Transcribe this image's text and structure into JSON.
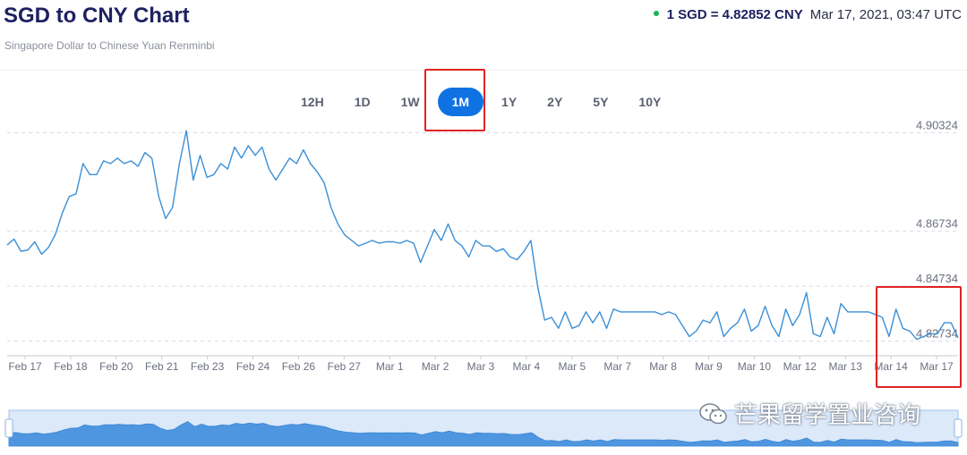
{
  "header": {
    "title": "SGD to CNY Chart",
    "subtitle": "Singapore Dollar to Chinese Yuan Renminbi",
    "rate": "1 SGD = 4.82852 CNY",
    "timestamp": "Mar 17, 2021, 03:47 UTC",
    "status_color": "#16b550"
  },
  "ranges": {
    "items": [
      "12H",
      "1D",
      "1W",
      "1M",
      "1Y",
      "2Y",
      "5Y",
      "10Y"
    ],
    "active": "1M",
    "active_color": "#0e72e3"
  },
  "watermark": "芒果留学置业咨询",
  "chart_data": {
    "type": "line",
    "x_tick_labels": [
      "Feb 17",
      "Feb 18",
      "Feb 20",
      "Feb 21",
      "Feb 23",
      "Feb 24",
      "Feb 26",
      "Feb 27",
      "Mar 1",
      "Mar 2",
      "Mar 3",
      "Mar 4",
      "Mar 5",
      "Mar 7",
      "Mar 8",
      "Mar 9",
      "Mar 10",
      "Mar 12",
      "Mar 13",
      "Mar 14",
      "Mar 17"
    ],
    "y_tick_labels": [
      "4.90324",
      "4.86734",
      "4.84734",
      "4.82734"
    ],
    "y_ticks": [
      4.90324,
      4.86734,
      4.84734,
      4.82734
    ],
    "ylim": [
      4.822,
      4.906
    ],
    "grid": true,
    "line_color": "#3a8fd6",
    "series": [
      {
        "values": [
          4.8624,
          4.8645,
          4.8601,
          4.8605,
          4.8635,
          4.859,
          4.8615,
          4.8662,
          4.874,
          4.88,
          4.881,
          4.892,
          4.888,
          4.888,
          4.893,
          4.892,
          4.894,
          4.892,
          4.893,
          4.891,
          4.896,
          4.894,
          4.88,
          4.872,
          4.876,
          4.892,
          4.904,
          4.886,
          4.895,
          4.887,
          4.888,
          4.892,
          4.89,
          4.898,
          4.894,
          4.8985,
          4.895,
          4.898,
          4.89,
          4.886,
          4.89,
          4.894,
          4.892,
          4.897,
          4.892,
          4.889,
          4.885,
          4.876,
          4.87,
          4.866,
          4.864,
          4.862,
          4.863,
          4.864,
          4.863,
          4.8635,
          4.8635,
          4.863,
          4.864,
          4.863,
          4.856,
          4.862,
          4.868,
          4.864,
          4.87,
          4.864,
          4.862,
          4.858,
          4.864,
          4.862,
          4.862,
          4.86,
          4.861,
          4.858,
          4.857,
          4.86,
          4.864,
          4.847,
          4.835,
          4.836,
          4.832,
          4.838,
          4.832,
          4.833,
          4.838,
          4.834,
          4.838,
          4.832,
          4.839,
          4.838,
          4.838,
          4.838,
          4.838,
          4.838,
          4.838,
          4.837,
          4.838,
          4.837,
          4.833,
          4.829,
          4.831,
          4.835,
          4.834,
          4.838,
          4.829,
          4.832,
          4.834,
          4.839,
          4.831,
          4.833,
          4.84,
          4.833,
          4.829,
          4.839,
          4.833,
          4.837,
          4.845,
          4.83,
          4.829,
          4.836,
          4.83,
          4.841,
          4.838,
          4.838,
          4.838,
          4.838,
          4.837,
          4.836,
          4.829,
          4.839,
          4.832,
          4.831,
          4.828,
          4.829,
          4.83,
          4.83,
          4.834,
          4.834,
          4.8285
        ]
      }
    ]
  }
}
